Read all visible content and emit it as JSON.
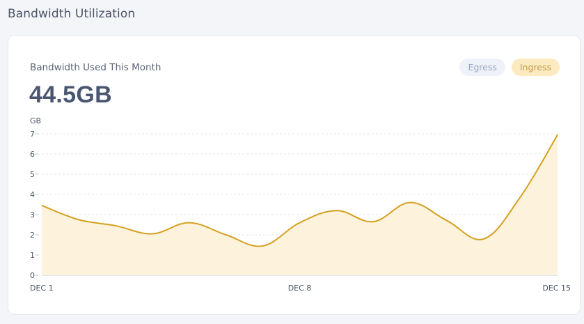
{
  "page": {
    "title": "Bandwidth Utilization"
  },
  "card": {
    "label": "Bandwidth Used This Month",
    "total": "44.5GB"
  },
  "legend": [
    {
      "name": "Egress",
      "active": false
    },
    {
      "name": "Ingress",
      "active": true
    }
  ],
  "chart_data": {
    "type": "area",
    "ylabel": "GB",
    "ylim": [
      0,
      7
    ],
    "yticks": [
      0,
      1,
      2,
      3,
      4,
      5,
      6,
      7
    ],
    "xlim": [
      1,
      15
    ],
    "xticks": [
      {
        "value": 1,
        "label": "DEC 1"
      },
      {
        "value": 8,
        "label": "DEC 8"
      },
      {
        "value": 15,
        "label": "DEC 15"
      }
    ],
    "grid": true,
    "series": [
      {
        "name": "Ingress",
        "color": "#d4a020",
        "fill": "#fdf2dc",
        "x": [
          1,
          2,
          3,
          4,
          5,
          6,
          7,
          8,
          9,
          10,
          11,
          12,
          13,
          14,
          15
        ],
        "y": [
          3.45,
          2.75,
          2.45,
          2.05,
          2.6,
          2.0,
          1.45,
          2.6,
          3.2,
          2.65,
          3.6,
          2.7,
          1.8,
          3.9,
          6.95
        ]
      }
    ]
  }
}
